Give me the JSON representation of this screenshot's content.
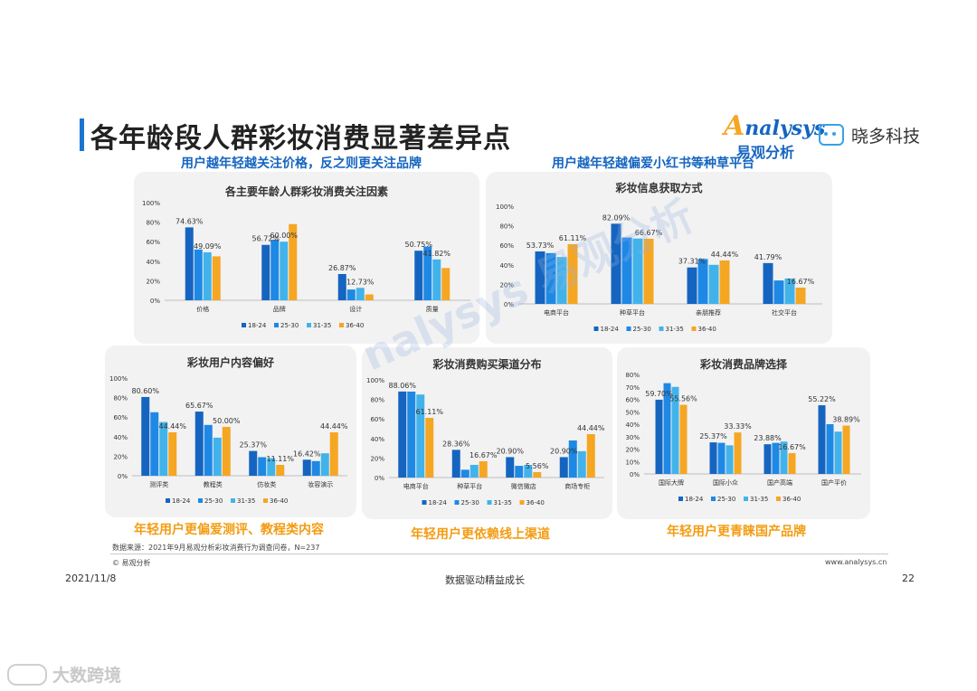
{
  "page": {
    "title": "各年龄段人群彩妆消费显著差异点",
    "subtitle_left": "用户越年轻越关注价格，反之则更关注品牌",
    "subtitle_right": "用户越年轻越偏爱小红书等种草平台",
    "insight_1": "年轻用户更偏爱测评、教程类内容",
    "insight_2": "年轻用户更依赖线上渠道",
    "insight_3": "年轻用户更青睐国产品牌",
    "source": "数据来源：2021年9月易观分析彩妆消费行为调查问卷，N=237",
    "copyright": "© 易观分析",
    "url": "www.analysys.cn",
    "date": "2021/11/8",
    "slogan": "数据驱动精益成长",
    "page_number": "22",
    "logo_analysys_en": "nalysys",
    "logo_analysys_cn": "易观分析",
    "logo_xd": "晓多科技",
    "watermark_bottom": "大数跨境",
    "watermark_center": "nalysys 易观分析"
  },
  "series_names": [
    "18-24",
    "25-30",
    "31-35",
    "36-40"
  ],
  "colors": {
    "s1": "#1565c0",
    "s2": "#1e88e5",
    "s3": "#42b3ea",
    "s4": "#f5a623",
    "title_blue": "#1565c0",
    "highlight_orange": "#f39c12"
  },
  "chart_data": [
    {
      "type": "bar",
      "title": "各主要年龄人群彩妆消费关注因素",
      "categories": [
        "价格",
        "品牌",
        "设计",
        "质量"
      ],
      "yticks": [
        "0%",
        "20%",
        "40%",
        "60%",
        "80%",
        "100%"
      ],
      "ylim": [
        0,
        100
      ],
      "series": [
        {
          "name": "18-24",
          "values": [
            74.63,
            56.72,
            26.87,
            50.75
          ]
        },
        {
          "name": "25-30",
          "values": [
            52,
            62,
            11,
            55
          ]
        },
        {
          "name": "31-35",
          "values": [
            49.09,
            60.0,
            12.73,
            41.82
          ]
        },
        {
          "name": "36-40",
          "values": [
            45,
            78,
            6,
            33
          ]
        }
      ],
      "data_labels": [
        {
          "series": 0,
          "category": 0,
          "text": "74.63%"
        },
        {
          "series": 2,
          "category": 0,
          "text": "49.09%"
        },
        {
          "series": 0,
          "category": 1,
          "text": "56.72%"
        },
        {
          "series": 2,
          "category": 1,
          "text": "60.00%"
        },
        {
          "series": 0,
          "category": 2,
          "text": "26.87%"
        },
        {
          "series": 2,
          "category": 2,
          "text": "12.73%"
        },
        {
          "series": 0,
          "category": 3,
          "text": "50.75%"
        },
        {
          "series": 2,
          "category": 3,
          "text": "41.82%"
        }
      ],
      "legend": "bottom"
    },
    {
      "type": "bar",
      "title": "彩妆信息获取方式",
      "categories": [
        "电商平台",
        "种草平台",
        "亲朋推荐",
        "社交平台"
      ],
      "yticks": [
        "0%",
        "20%",
        "40%",
        "60%",
        "80%",
        "100%"
      ],
      "ylim": [
        0,
        100
      ],
      "series": [
        {
          "name": "18-24",
          "values": [
            53.73,
            82.09,
            37.31,
            41.79
          ]
        },
        {
          "name": "25-30",
          "values": [
            52,
            68,
            46,
            24
          ]
        },
        {
          "name": "31-35",
          "values": [
            48,
            67,
            40,
            26
          ]
        },
        {
          "name": "36-40",
          "values": [
            61.11,
            66.67,
            44.44,
            16.67
          ]
        }
      ],
      "data_labels": [
        {
          "series": 0,
          "category": 0,
          "text": "53.73%"
        },
        {
          "series": 3,
          "category": 0,
          "text": "61.11%"
        },
        {
          "series": 0,
          "category": 1,
          "text": "82.09%"
        },
        {
          "series": 3,
          "category": 1,
          "text": "66.67%"
        },
        {
          "series": 0,
          "category": 2,
          "text": "37.31%"
        },
        {
          "series": 3,
          "category": 2,
          "text": "44.44%"
        },
        {
          "series": 0,
          "category": 3,
          "text": "41.79%"
        },
        {
          "series": 3,
          "category": 3,
          "text": "16.67%"
        }
      ],
      "legend": "bottom"
    },
    {
      "type": "bar",
      "title": "彩妆用户内容偏好",
      "categories": [
        "测评类",
        "教程类",
        "仿妆类",
        "妆容演示"
      ],
      "yticks": [
        "0%",
        "20%",
        "40%",
        "60%",
        "80%",
        "100%"
      ],
      "ylim": [
        0,
        100
      ],
      "series": [
        {
          "name": "18-24",
          "values": [
            80.6,
            65.67,
            25.37,
            16.42
          ]
        },
        {
          "name": "25-30",
          "values": [
            65,
            52,
            19,
            15
          ]
        },
        {
          "name": "31-35",
          "values": [
            55,
            39,
            18,
            23
          ]
        },
        {
          "name": "36-40",
          "values": [
            44.44,
            50.0,
            11.11,
            44.44
          ]
        }
      ],
      "data_labels": [
        {
          "series": 0,
          "category": 0,
          "text": "80.60%"
        },
        {
          "series": 3,
          "category": 0,
          "text": "44.44%"
        },
        {
          "series": 0,
          "category": 1,
          "text": "65.67%"
        },
        {
          "series": 3,
          "category": 1,
          "text": "50.00%"
        },
        {
          "series": 0,
          "category": 2,
          "text": "25.37%"
        },
        {
          "series": 3,
          "category": 2,
          "text": "11.11%"
        },
        {
          "series": 0,
          "category": 3,
          "text": "16.42%"
        },
        {
          "series": 3,
          "category": 3,
          "text": "44.44%"
        }
      ],
      "legend": "bottom"
    },
    {
      "type": "bar",
      "title": "彩妆消费购买渠道分布",
      "categories": [
        "电商平台",
        "种草平台",
        "微信微店",
        "商场专柜"
      ],
      "yticks": [
        "0%",
        "20%",
        "40%",
        "60%",
        "80%",
        "100%"
      ],
      "ylim": [
        0,
        100
      ],
      "series": [
        {
          "name": "18-24",
          "values": [
            88.06,
            28.36,
            20.9,
            20.9
          ]
        },
        {
          "name": "25-30",
          "values": [
            88,
            8,
            12,
            38
          ]
        },
        {
          "name": "31-35",
          "values": [
            85,
            13,
            13,
            27
          ]
        },
        {
          "name": "36-40",
          "values": [
            61.11,
            16.67,
            5.56,
            44.44
          ]
        }
      ],
      "data_labels": [
        {
          "series": 0,
          "category": 0,
          "text": "88.06%"
        },
        {
          "series": 3,
          "category": 0,
          "text": "61.11%"
        },
        {
          "series": 0,
          "category": 1,
          "text": "28.36%"
        },
        {
          "series": 3,
          "category": 1,
          "text": "16.67%"
        },
        {
          "series": 0,
          "category": 2,
          "text": "20.90%"
        },
        {
          "series": 3,
          "category": 2,
          "text": "5.56%"
        },
        {
          "series": 0,
          "category": 3,
          "text": "20.90%"
        },
        {
          "series": 3,
          "category": 3,
          "text": "44.44%"
        }
      ],
      "legend": "bottom"
    },
    {
      "type": "bar",
      "title": "彩妆消费品牌选择",
      "categories": [
        "国际大牌",
        "国际小众",
        "国产高端",
        "国产平价"
      ],
      "yticks": [
        "0%",
        "10%",
        "20%",
        "30%",
        "40%",
        "50%",
        "60%",
        "70%",
        "80%"
      ],
      "ylim": [
        0,
        80
      ],
      "series": [
        {
          "name": "18-24",
          "values": [
            59.7,
            25.37,
            23.88,
            55.22
          ]
        },
        {
          "name": "25-30",
          "values": [
            73,
            25,
            25,
            40
          ]
        },
        {
          "name": "31-35",
          "values": [
            70,
            23,
            26,
            34
          ]
        },
        {
          "name": "36-40",
          "values": [
            55.56,
            33.33,
            16.67,
            38.89
          ]
        }
      ],
      "data_labels": [
        {
          "series": 0,
          "category": 0,
          "text": "59.70%"
        },
        {
          "series": 3,
          "category": 0,
          "text": "55.56%"
        },
        {
          "series": 0,
          "category": 1,
          "text": "25.37%"
        },
        {
          "series": 3,
          "category": 1,
          "text": "33.33%"
        },
        {
          "series": 0,
          "category": 2,
          "text": "23.88%"
        },
        {
          "series": 3,
          "category": 2,
          "text": "16.67%"
        },
        {
          "series": 0,
          "category": 3,
          "text": "55.22%"
        },
        {
          "series": 3,
          "category": 3,
          "text": "38.89%"
        }
      ],
      "legend": "bottom"
    }
  ]
}
